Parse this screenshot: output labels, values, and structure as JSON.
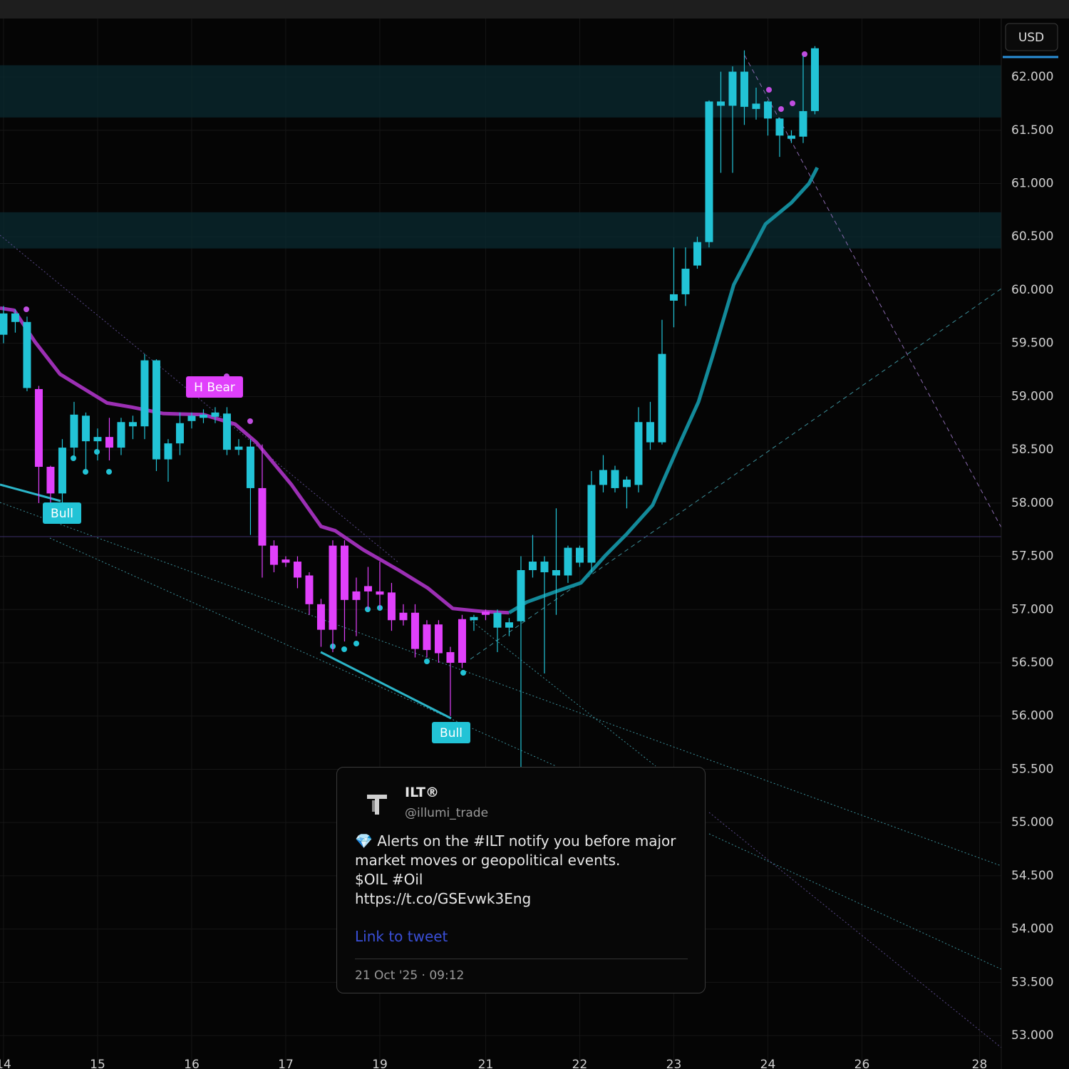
{
  "chart_data": {
    "type": "candlestick",
    "currency": "USD",
    "up_color": "#22c3d6",
    "down_color": "#e040fb",
    "open": [
      59.58,
      59.7,
      59.08,
      59.07,
      58.34,
      58.09,
      58.52,
      58.58,
      58.58,
      58.62,
      58.52,
      58.72,
      58.72,
      58.41,
      58.41,
      58.56,
      58.77,
      58.8,
      58.81,
      58.5,
      58.5,
      58.14,
      58.14,
      57.6,
      57.47,
      57.45,
      57.32,
      57.05,
      57.6,
      57.6,
      57.17,
      57.22,
      57.17,
      57.16,
      56.97,
      56.97,
      56.86,
      56.86,
      56.6,
      56.91,
      56.9,
      56.98,
      56.83,
      56.83,
      56.89,
      57.37,
      57.35,
      57.32,
      57.32,
      57.44,
      57.44,
      58.17,
      58.14,
      58.15,
      58.17,
      58.57,
      58.57,
      59.9,
      59.96,
      60.23,
      60.45,
      61.73,
      61.73,
      61.72,
      61.7,
      61.61,
      61.45,
      61.42,
      61.44,
      61.68
    ],
    "high": [
      59.85,
      59.82,
      59.75,
      59.1,
      58.35,
      58.6,
      58.95,
      58.85,
      58.7,
      58.8,
      58.8,
      58.82,
      59.4,
      59.35,
      58.6,
      58.85,
      58.85,
      58.88,
      58.9,
      58.9,
      58.6,
      58.6,
      58.55,
      57.65,
      57.5,
      57.5,
      57.35,
      57.1,
      57.65,
      57.65,
      57.3,
      57.4,
      57.45,
      57.25,
      57.05,
      57.05,
      56.9,
      56.9,
      56.65,
      56.95,
      56.95,
      57.0,
      57.0,
      56.92,
      57.5,
      57.7,
      57.5,
      57.95,
      57.6,
      57.6,
      58.3,
      58.45,
      58.35,
      58.25,
      58.9,
      58.95,
      59.72,
      60.4,
      60.4,
      60.5,
      61.78,
      62.05,
      62.1,
      62.25,
      61.9,
      61.78,
      61.62,
      61.5,
      62.2,
      62.29
    ],
    "low": [
      59.5,
      59.6,
      59.05,
      58.0,
      57.9,
      57.95,
      58.4,
      58.3,
      58.4,
      58.4,
      58.45,
      58.6,
      58.6,
      58.3,
      58.2,
      58.45,
      58.7,
      58.75,
      58.75,
      58.45,
      58.45,
      57.7,
      57.3,
      57.35,
      57.4,
      57.2,
      56.95,
      56.65,
      56.6,
      56.7,
      56.75,
      57.0,
      57.0,
      56.8,
      56.85,
      56.55,
      56.55,
      56.5,
      56.0,
      56.45,
      56.8,
      56.9,
      56.6,
      56.75,
      55.5,
      57.3,
      56.4,
      56.95,
      57.25,
      57.4,
      57.35,
      58.1,
      58.1,
      57.95,
      58.1,
      58.5,
      58.55,
      59.65,
      59.85,
      60.2,
      60.4,
      61.1,
      61.1,
      61.55,
      61.6,
      61.45,
      61.25,
      61.38,
      61.38,
      61.65
    ],
    "close": [
      59.78,
      59.78,
      59.7,
      58.34,
      58.09,
      58.52,
      58.83,
      58.82,
      58.62,
      58.52,
      58.76,
      58.76,
      59.34,
      59.34,
      58.56,
      58.75,
      58.82,
      58.83,
      58.85,
      58.84,
      58.53,
      58.53,
      57.6,
      57.42,
      57.44,
      57.3,
      57.05,
      56.81,
      56.81,
      57.09,
      57.09,
      57.17,
      57.14,
      56.9,
      56.9,
      56.63,
      56.62,
      56.59,
      56.5,
      56.5,
      56.93,
      56.95,
      56.97,
      56.88,
      57.37,
      57.45,
      57.45,
      57.37,
      57.58,
      57.58,
      58.17,
      58.31,
      58.31,
      58.22,
      58.76,
      58.76,
      59.4,
      59.96,
      60.2,
      60.45,
      61.77,
      61.77,
      62.05,
      62.05,
      61.75,
      61.77,
      61.61,
      61.45,
      61.68,
      62.27
    ],
    "lines": [
      {
        "color": "#9c2fb4",
        "x": [
          -0.3,
          0.9,
          2.7,
          4.8,
          8.8,
          10.9,
          13.6,
          17.0,
          19.7,
          21.5,
          24.5,
          27.0,
          28.2,
          30.6,
          33.6,
          36.1,
          38.2,
          40.9,
          43.0
        ],
        "values": [
          59.83,
          59.81,
          59.51,
          59.21,
          58.94,
          58.9,
          58.84,
          58.83,
          58.74,
          58.57,
          58.17,
          57.78,
          57.74,
          57.56,
          57.37,
          57.2,
          57.01,
          56.98,
          56.97
        ]
      },
      {
        "color": "#138a9a",
        "x": [
          43.0,
          44.5,
          47.0,
          49.1,
          51.2,
          53.0,
          55.2,
          57.3,
          59.1,
          60.3,
          62.1,
          64.8,
          67.0,
          68.5,
          69.2
        ],
        "values": [
          56.97,
          57.07,
          57.17,
          57.25,
          57.51,
          57.71,
          57.98,
          58.51,
          58.95,
          59.38,
          60.05,
          60.62,
          60.82,
          61.0,
          61.15
        ]
      }
    ],
    "zones": [
      [
        61.62,
        62.11
      ],
      [
        60.39,
        60.73
      ]
    ],
    "annotations": [
      "Bull",
      "H Bear",
      "Bull"
    ],
    "xlim": [
      -0.3,
      84.85
    ],
    "xticks": [
      {
        "value": 0,
        "label": "14"
      },
      {
        "value": 8,
        "label": "15"
      },
      {
        "value": 16,
        "label": "16"
      },
      {
        "value": 24,
        "label": "17"
      },
      {
        "value": 32,
        "label": "19"
      },
      {
        "value": 41,
        "label": "21"
      },
      {
        "value": 49,
        "label": "22"
      },
      {
        "value": 57,
        "label": "23"
      },
      {
        "value": 65,
        "label": "24"
      },
      {
        "value": 73,
        "label": "26"
      },
      {
        "value": 83,
        "label": "28"
      }
    ],
    "ylim": [
      52.686,
      62.723
    ],
    "yticks": [
      {
        "value": 53,
        "label": "53.000"
      },
      {
        "value": 53.5,
        "label": "53.500"
      },
      {
        "value": 54,
        "label": "54.000"
      },
      {
        "value": 54.5,
        "label": "54.500"
      },
      {
        "value": 55,
        "label": "55.000"
      },
      {
        "value": 55.5,
        "label": "55.500"
      },
      {
        "value": 56,
        "label": "56.000"
      },
      {
        "value": 56.5,
        "label": "56.500"
      },
      {
        "value": 57,
        "label": "57.000"
      },
      {
        "value": 57.5,
        "label": "57.500"
      },
      {
        "value": 58,
        "label": "58.000"
      },
      {
        "value": 58.5,
        "label": "58.500"
      },
      {
        "value": 59,
        "label": "59.000"
      },
      {
        "value": 59.5,
        "label": "59.500"
      },
      {
        "value": 60,
        "label": "60.000"
      },
      {
        "value": 60.5,
        "label": "60.500"
      },
      {
        "value": 61,
        "label": "61.000"
      },
      {
        "value": 61.5,
        "label": "61.500"
      },
      {
        "value": 62,
        "label": "62.000"
      }
    ],
    "grid": true
  },
  "tweet": {
    "name": "ILT®",
    "handle": "@illumi_trade",
    "paragraphs": [
      "💎 Alerts on the #ILT notify you before major market moves or geopolitical events.",
      "$OIL #Oil",
      "https://t.co/GSEvwk3Eng"
    ],
    "link": "Link to tweet",
    "date": "21 Oct '25 · 09:12"
  }
}
